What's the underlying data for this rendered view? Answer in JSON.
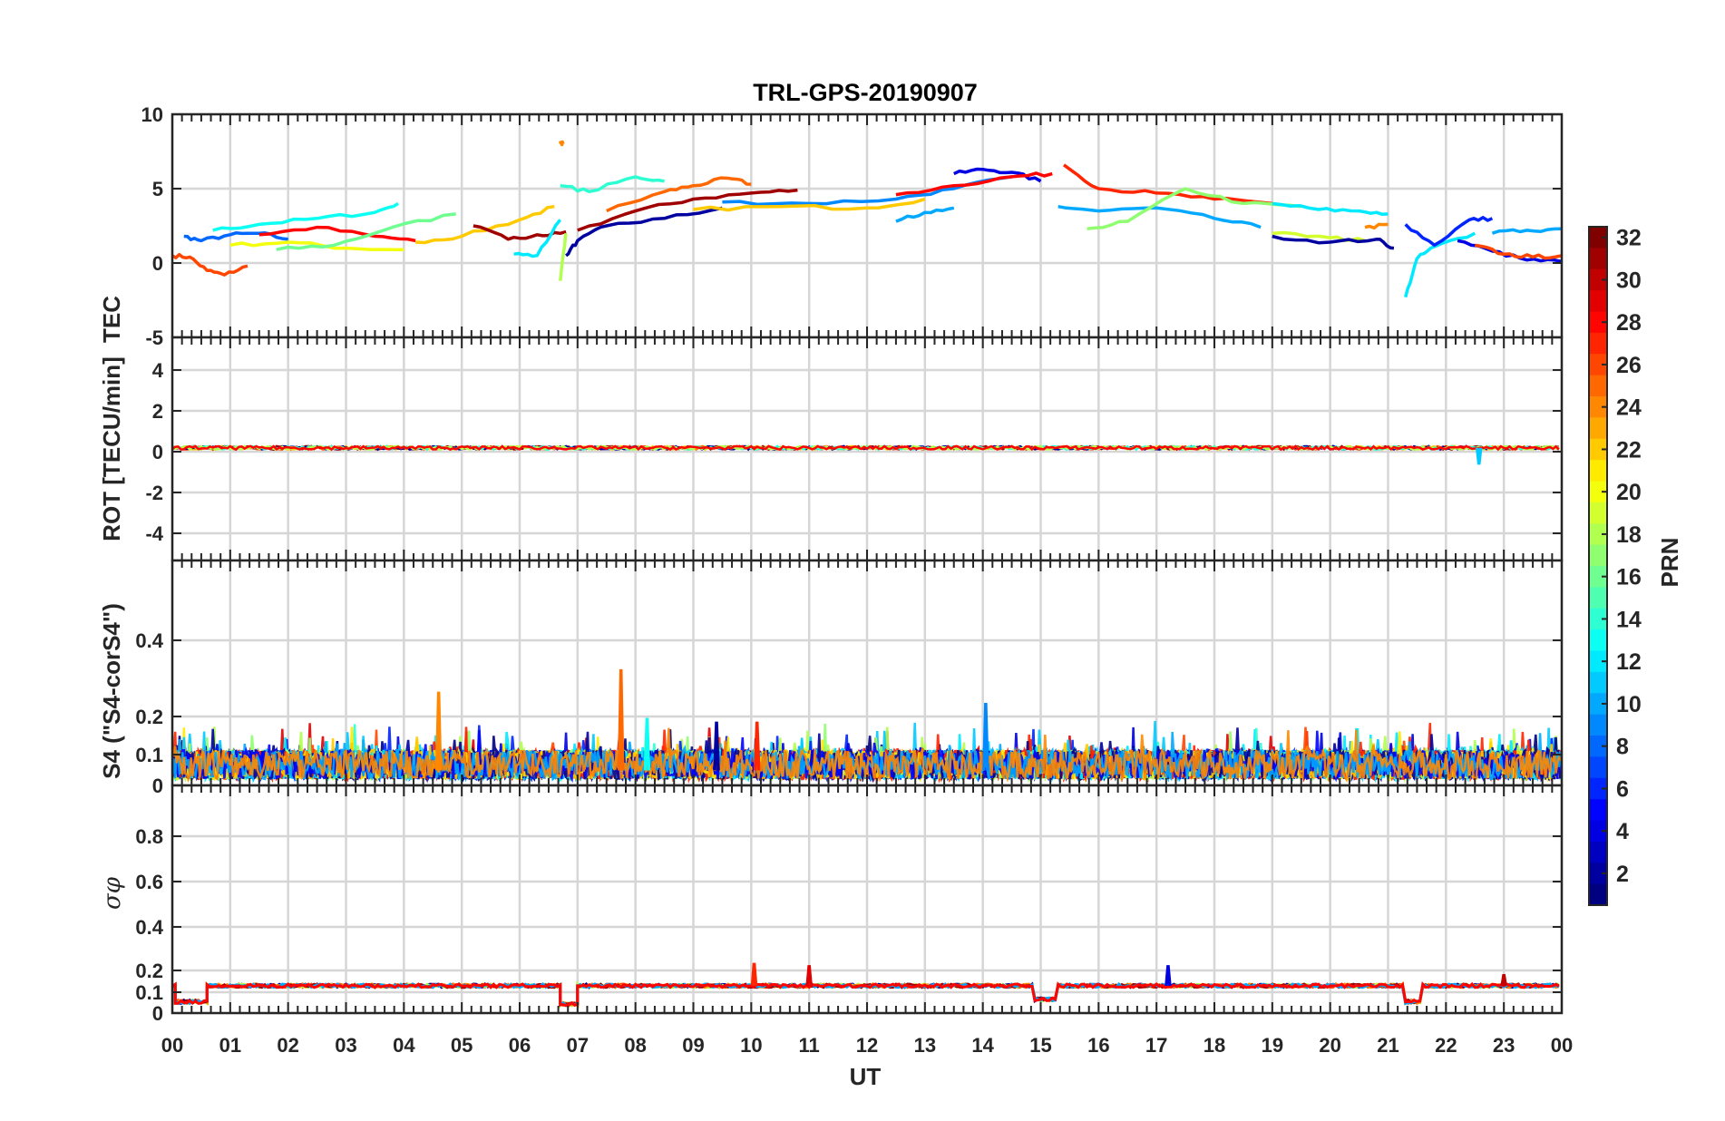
{
  "chart_data": {
    "type": "line",
    "title": "TRL-GPS-20190907",
    "xlabel": "UT",
    "x_ticks": [
      "00",
      "01",
      "02",
      "03",
      "04",
      "05",
      "06",
      "07",
      "08",
      "09",
      "10",
      "11",
      "12",
      "13",
      "14",
      "15",
      "16",
      "17",
      "18",
      "19",
      "20",
      "21",
      "22",
      "23",
      "00"
    ],
    "xlim_hours": [
      0,
      24
    ],
    "grid": true,
    "colorbar": {
      "label": "PRN",
      "range": [
        1,
        32
      ],
      "ticks": [
        "2",
        "4",
        "6",
        "8",
        "10",
        "12",
        "14",
        "16",
        "18",
        "20",
        "22",
        "24",
        "26",
        "28",
        "30",
        "32"
      ],
      "colormap": "jet"
    },
    "panels": [
      {
        "id": "tec",
        "ylabel": "TEC",
        "ylim": [
          -5,
          10
        ],
        "y_ticks": [
          "-5",
          "0",
          "5",
          "10"
        ],
        "series": [
          {
            "prn": 26,
            "x": [
              0,
              0.3,
              0.6,
              0.9,
              1.3
            ],
            "y": [
              0.5,
              0.4,
              -0.5,
              -0.8,
              -0.2
            ]
          },
          {
            "prn": 8,
            "x": [
              0.2,
              0.5,
              1.0,
              1.5,
              2.0
            ],
            "y": [
              1.8,
              1.5,
              1.9,
              2.0,
              1.6
            ]
          },
          {
            "prn": 13,
            "x": [
              0.7,
              1.5,
              2.5,
              3.5,
              3.9
            ],
            "y": [
              2.2,
              2.6,
              3.0,
              3.4,
              4.0
            ]
          },
          {
            "prn": 20,
            "x": [
              1.0,
              2.0,
              3.0,
              4.0
            ],
            "y": [
              1.2,
              1.4,
              1.0,
              0.9
            ]
          },
          {
            "prn": 28,
            "x": [
              1.5,
              2.5,
              3.5,
              4.2
            ],
            "y": [
              1.9,
              2.4,
              1.8,
              1.5
            ]
          },
          {
            "prn": 16,
            "x": [
              1.8,
              2.8,
              3.8,
              4.9
            ],
            "y": [
              0.9,
              1.2,
              2.4,
              3.3
            ]
          },
          {
            "prn": 22,
            "x": [
              4.2,
              5.0,
              6.0,
              6.6
            ],
            "y": [
              1.4,
              1.8,
              2.9,
              3.8
            ]
          },
          {
            "prn": 31,
            "x": [
              5.2,
              5.8,
              6.3,
              6.8
            ],
            "y": [
              2.5,
              1.6,
              1.9,
              2.1
            ]
          },
          {
            "prn": 12,
            "x": [
              5.9,
              6.3,
              6.7
            ],
            "y": [
              0.6,
              0.5,
              2.9
            ]
          },
          {
            "prn": 24,
            "x": [
              6.7,
              6.75
            ],
            "y": [
              8.2,
              8.0
            ]
          },
          {
            "prn": 14,
            "x": [
              6.7,
              7.2,
              8.0,
              8.5
            ],
            "y": [
              5.2,
              4.8,
              5.8,
              5.5
            ]
          },
          {
            "prn": 18,
            "x": [
              6.7,
              6.75,
              6.8
            ],
            "y": [
              -1.2,
              0.5,
              2.0
            ]
          },
          {
            "prn": 2,
            "x": [
              6.8,
              7.0,
              7.5,
              8.5,
              9.5
            ],
            "y": [
              0.5,
              1.5,
              2.5,
              3.0,
              3.7
            ]
          },
          {
            "prn": 25,
            "x": [
              7.5,
              8.5,
              9.0,
              9.6,
              10.0
            ],
            "y": [
              3.5,
              4.8,
              5.2,
              5.7,
              5.3
            ]
          },
          {
            "prn": 31,
            "x": [
              7.0,
              8.0,
              9.0,
              10.0,
              10.8
            ],
            "y": [
              2.2,
              3.5,
              4.3,
              4.7,
              4.9
            ]
          },
          {
            "prn": 9,
            "x": [
              9.5,
              11.0,
              12.5,
              13.5,
              14.5
            ],
            "y": [
              4.1,
              4.0,
              4.3,
              5.0,
              5.8
            ]
          },
          {
            "prn": 22,
            "x": [
              9.0,
              10.5,
              12.0,
              13.0
            ],
            "y": [
              3.6,
              3.8,
              3.7,
              4.3
            ]
          },
          {
            "prn": 10,
            "x": [
              12.5,
              13.0,
              13.5
            ],
            "y": [
              2.8,
              3.4,
              3.7
            ]
          },
          {
            "prn": 4,
            "x": [
              13.5,
              14.0,
              14.5,
              15.0
            ],
            "y": [
              6.0,
              6.3,
              6.1,
              5.5
            ]
          },
          {
            "prn": 28,
            "x": [
              12.5,
              13.5,
              14.5,
              15.2
            ],
            "y": [
              4.6,
              5.2,
              5.8,
              6.0
            ]
          },
          {
            "prn": 27,
            "x": [
              15.4,
              16.0,
              17.0,
              18.0,
              19.0
            ],
            "y": [
              6.6,
              5.0,
              4.7,
              4.3,
              4.0
            ]
          },
          {
            "prn": 10,
            "x": [
              15.3,
              16.0,
              17.0,
              18.0,
              18.8
            ],
            "y": [
              3.8,
              3.5,
              3.7,
              3.0,
              2.4
            ]
          },
          {
            "prn": 17,
            "x": [
              15.8,
              16.5,
              17.5,
              18.5,
              19.5
            ],
            "y": [
              2.3,
              2.8,
              5.0,
              4.0,
              3.8
            ]
          },
          {
            "prn": 12,
            "x": [
              19.0,
              19.8,
              20.5,
              21.0
            ],
            "y": [
              4.0,
              3.6,
              3.5,
              3.3
            ]
          },
          {
            "prn": 19,
            "x": [
              19.0,
              20.0,
              20.6
            ],
            "y": [
              2.0,
              1.7,
              1.5
            ]
          },
          {
            "prn": 2,
            "x": [
              19.0,
              20.0,
              20.8,
              21.1
            ],
            "y": [
              1.8,
              1.4,
              1.6,
              1.0
            ]
          },
          {
            "prn": 24,
            "x": [
              20.6,
              21.0
            ],
            "y": [
              2.4,
              2.6
            ]
          },
          {
            "prn": 12,
            "x": [
              21.3,
              21.5,
              21.8,
              22.5
            ],
            "y": [
              -2.3,
              0.3,
              1.1,
              2.0
            ]
          },
          {
            "prn": 6,
            "x": [
              21.3,
              21.8,
              22.4,
              22.8
            ],
            "y": [
              2.6,
              1.2,
              2.9,
              3.0
            ]
          },
          {
            "prn": 4,
            "x": [
              22.2,
              22.8,
              23.4,
              24.0
            ],
            "y": [
              1.5,
              0.8,
              0.2,
              0.1
            ]
          },
          {
            "prn": 26,
            "x": [
              22.5,
              23.0,
              23.5,
              24.0
            ],
            "y": [
              1.2,
              0.6,
              0.4,
              0.5
            ]
          },
          {
            "prn": 10,
            "x": [
              22.8,
              23.4,
              24.0
            ],
            "y": [
              2.0,
              2.2,
              2.3
            ]
          }
        ]
      },
      {
        "id": "rot",
        "ylabel": "ROT [TECU/min]",
        "ylim": [
          -5,
          5
        ],
        "y_ticks": [
          "-4",
          "-2",
          "0",
          "2",
          "4"
        ],
        "series": [
          {
            "prn": 26,
            "x": [
              0,
              24
            ],
            "y": [
              0.05,
              0.05
            ]
          },
          {
            "prn": 31,
            "x": [
              5.2,
              9.0
            ],
            "y": [
              0.1,
              0.12
            ]
          },
          {
            "prn": 22,
            "x": [
              3.0,
              7.5
            ],
            "y": [
              0.03,
              0.03
            ]
          },
          {
            "prn": 2,
            "x": [
              10.0,
              14.0
            ],
            "y": [
              0.05,
              0.03
            ]
          },
          {
            "prn": 11,
            "x": [
              22.55,
              22.6
            ],
            "y": [
              -0.2,
              -0.7
            ]
          },
          {
            "prn": 28,
            "x": [
              15.0,
              18.0
            ],
            "y": [
              -0.05,
              0.08
            ]
          }
        ],
        "spikes": [
          {
            "prn": 11,
            "x": 22.57,
            "y": -0.7
          }
        ]
      },
      {
        "id": "s4",
        "ylabel": "S4 (\"S4-corS4\")",
        "ylim": [
          0,
          0.6
        ],
        "y_ticks": [
          "0",
          "0.1",
          "0.2",
          "0.4"
        ],
        "baseline": 0.04,
        "noise_top": 0.1,
        "spikes": [
          {
            "prn": 24,
            "x": 4.6,
            "y": 0.25
          },
          {
            "prn": 25,
            "x": 7.75,
            "y": 0.31
          },
          {
            "prn": 9,
            "x": 14.05,
            "y": 0.22
          },
          {
            "prn": 27,
            "x": 10.1,
            "y": 0.17
          },
          {
            "prn": 13,
            "x": 8.2,
            "y": 0.18
          },
          {
            "prn": 2,
            "x": 9.4,
            "y": 0.17
          }
        ]
      },
      {
        "id": "sigma_phi",
        "ylabel": "σφ",
        "ylim": [
          0,
          1
        ],
        "y_ticks": [
          "0",
          "0.1",
          "0.2",
          "0.4",
          "0.6",
          "0.8"
        ],
        "segments": [
          {
            "x0": 0.0,
            "x1": 0.05,
            "y": 0.12
          },
          {
            "x0": 0.05,
            "x1": 0.6,
            "y": 0.05
          },
          {
            "x0": 0.6,
            "x1": 6.7,
            "y": 0.12
          },
          {
            "x0": 6.7,
            "x1": 7.0,
            "y": 0.04
          },
          {
            "x0": 7.0,
            "x1": 14.9,
            "y": 0.12
          },
          {
            "x0": 14.9,
            "x1": 15.3,
            "y": 0.06
          },
          {
            "x0": 15.3,
            "x1": 21.3,
            "y": 0.12
          },
          {
            "x0": 21.3,
            "x1": 21.6,
            "y": 0.05
          },
          {
            "x0": 21.6,
            "x1": 24.0,
            "y": 0.12
          }
        ],
        "spikes": [
          {
            "prn": 27,
            "x": 10.05,
            "y": 0.22
          },
          {
            "prn": 29,
            "x": 11.0,
            "y": 0.21
          },
          {
            "prn": 4,
            "x": 17.2,
            "y": 0.21
          },
          {
            "prn": 30,
            "x": 23.0,
            "y": 0.17
          }
        ]
      }
    ]
  }
}
